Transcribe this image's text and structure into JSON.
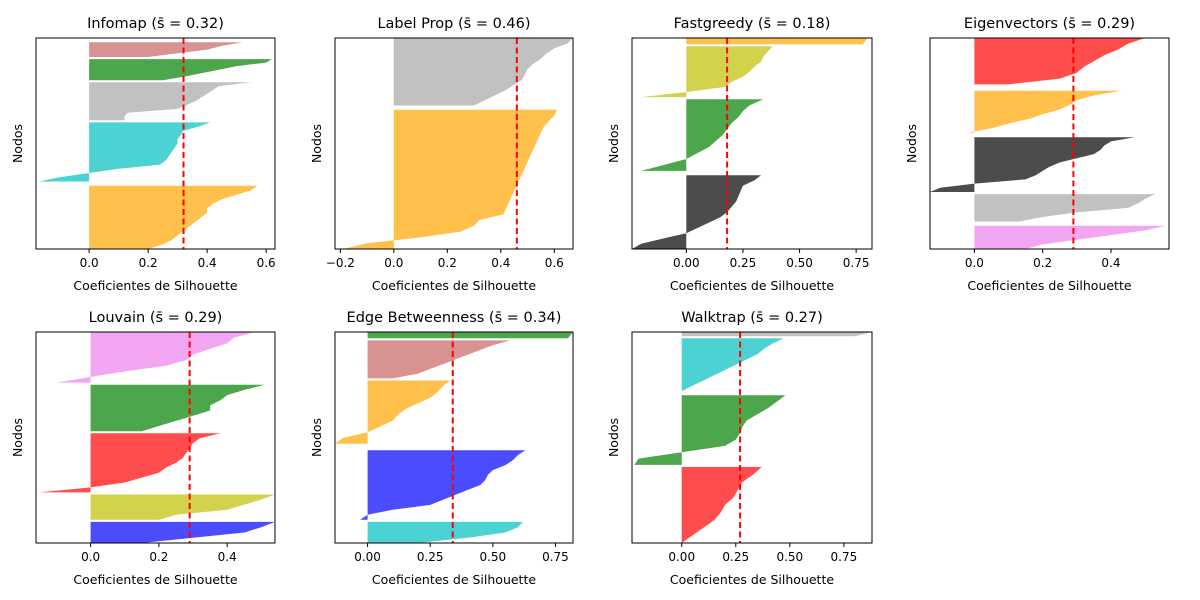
{
  "chart_data": [
    {
      "type": "silhouette",
      "title": "Infomap (s̄ = 0.32)",
      "xlabel": "Coeficientes de Silhouette",
      "ylabel": "Nodos",
      "xlim": [
        -0.18,
        0.63
      ],
      "ylim": [
        0,
        100
      ],
      "xticks": [
        0.0,
        0.2,
        0.4,
        0.6
      ],
      "xtick_labels": [
        "0.0",
        "0.2",
        "0.4",
        "0.6"
      ],
      "mean_silhouette": 0.32,
      "clusters": [
        {
          "color": "#ffa500",
          "y0": 0,
          "y1": 30,
          "values": [
            0.57,
            0.55,
            0.5,
            0.45,
            0.42,
            0.4,
            0.4,
            0.38,
            0.36,
            0.34,
            0.32,
            0.3,
            0.28,
            0.25,
            0.2
          ]
        },
        {
          "color": "#00bfbf",
          "y0": 32,
          "y1": 60,
          "values": [
            0.41,
            0.37,
            0.32,
            0.31,
            0.3,
            0.3,
            0.29,
            0.28,
            0.27,
            0.26,
            0.24,
            0.1,
            0.0,
            -0.1,
            -0.17
          ]
        },
        {
          "color": "#a6a6a6",
          "y0": 61,
          "y1": 79,
          "values": [
            0.55,
            0.44,
            0.42,
            0.4,
            0.38,
            0.36,
            0.33,
            0.3,
            0.13,
            0.12,
            0.12
          ]
        },
        {
          "color": "#008000",
          "y0": 80,
          "y1": 90,
          "values": [
            0.62,
            0.6,
            0.5,
            0.44,
            0.38,
            0.32,
            0.25
          ]
        },
        {
          "color": "#c86464",
          "y0": 91,
          "y1": 98,
          "values": [
            0.52,
            0.45,
            0.4,
            0.3,
            0.2
          ]
        }
      ]
    },
    {
      "type": "silhouette",
      "title": "Label Prop (s̄ = 0.46)",
      "xlabel": "Coeficientes de Silhouette",
      "ylabel": "Nodos",
      "xlim": [
        -0.22,
        0.67
      ],
      "ylim": [
        0,
        100
      ],
      "xticks": [
        -0.2,
        0.0,
        0.2,
        0.4,
        0.6
      ],
      "xtick_labels": [
        "−0.2",
        "0.0",
        "0.2",
        "0.4",
        "0.6"
      ],
      "mean_silhouette": 0.46,
      "clusters": [
        {
          "color": "#ffa500",
          "y0": 0,
          "y1": 66,
          "values": [
            0.61,
            0.6,
            0.58,
            0.56,
            0.55,
            0.54,
            0.53,
            0.52,
            0.51,
            0.5,
            0.49,
            0.48,
            0.47,
            0.46,
            0.45,
            0.44,
            0.43,
            0.42,
            0.41,
            0.32,
            0.3,
            0.25,
            0.1,
            -0.1,
            -0.19
          ]
        },
        {
          "color": "#a6a6a6",
          "y0": 68,
          "y1": 100,
          "values": [
            0.67,
            0.65,
            0.6,
            0.57,
            0.55,
            0.52,
            0.5,
            0.49,
            0.48,
            0.45,
            0.42,
            0.38,
            0.34,
            0.3
          ]
        }
      ]
    },
    {
      "type": "silhouette",
      "title": "Fastgreedy (s̄ = 0.18)",
      "xlabel": "Coeficientes de Silhouette",
      "ylabel": "Nodos",
      "xlim": [
        -0.24,
        0.82
      ],
      "ylim": [
        0,
        100
      ],
      "xticks": [
        0.0,
        0.25,
        0.5,
        0.75
      ],
      "xtick_labels": [
        "0.00",
        "0.25",
        "0.50",
        "0.75"
      ],
      "mean_silhouette": 0.18,
      "clusters": [
        {
          "color": "#000000",
          "y0": 0,
          "y1": 35,
          "values": [
            0.33,
            0.3,
            0.25,
            0.24,
            0.23,
            0.22,
            0.2,
            0.18,
            0.15,
            0.1,
            0.05,
            0.0,
            -0.1,
            -0.2,
            -0.24
          ]
        },
        {
          "color": "#008000",
          "y0": 37,
          "y1": 71,
          "values": [
            0.34,
            0.28,
            0.25,
            0.23,
            0.2,
            0.18,
            0.16,
            0.13,
            0.1,
            0.05,
            0.0,
            -0.1,
            -0.2
          ]
        },
        {
          "color": "#bfbf00",
          "y0": 72,
          "y1": 96,
          "values": [
            0.38,
            0.36,
            0.34,
            0.33,
            0.3,
            0.28,
            0.25,
            0.2,
            0.17,
            0.0,
            -0.2
          ]
        },
        {
          "color": "#ffa500",
          "y0": 97,
          "y1": 100,
          "values": [
            0.8,
            0.78
          ]
        }
      ]
    },
    {
      "type": "silhouette",
      "title": "Eigenvectors (s̄ = 0.29)",
      "xlabel": "Coeficientes de Silhouette",
      "ylabel": "Nodos",
      "xlim": [
        -0.13,
        0.57
      ],
      "ylim": [
        0,
        100
      ],
      "xticks": [
        0.0,
        0.2,
        0.4
      ],
      "xtick_labels": [
        "0.0",
        "0.2",
        "0.4"
      ],
      "mean_silhouette": 0.29,
      "clusters": [
        {
          "color": "#ee82ee",
          "y0": 0,
          "y1": 11,
          "values": [
            0.56,
            0.5,
            0.4,
            0.3,
            0.2,
            0.15
          ]
        },
        {
          "color": "#a6a6a6",
          "y0": 13,
          "y1": 26,
          "values": [
            0.53,
            0.5,
            0.48,
            0.45,
            0.3,
            0.2,
            0.13
          ]
        },
        {
          "color": "#000000",
          "y0": 27,
          "y1": 53,
          "values": [
            0.47,
            0.4,
            0.38,
            0.37,
            0.35,
            0.3,
            0.25,
            0.22,
            0.2,
            0.18,
            0.15,
            0.0,
            -0.1,
            -0.13
          ]
        },
        {
          "color": "#ffa500",
          "y0": 55,
          "y1": 75,
          "values": [
            0.43,
            0.35,
            0.3,
            0.28,
            0.25,
            0.2,
            0.16,
            0.1,
            0.05,
            -0.02
          ]
        },
        {
          "color": "#ff0000",
          "y0": 78,
          "y1": 100,
          "values": [
            0.5,
            0.45,
            0.42,
            0.38,
            0.35,
            0.32,
            0.3,
            0.25,
            0.1
          ]
        }
      ]
    },
    {
      "type": "silhouette",
      "title": "Louvain (s̄ = 0.29)",
      "xlabel": "Coeficientes de Silhouette",
      "ylabel": "Nodos",
      "xlim": [
        -0.16,
        0.54
      ],
      "ylim": [
        0,
        100
      ],
      "xticks": [
        0.0,
        0.2,
        0.4
      ],
      "xtick_labels": [
        "0.0",
        "0.2",
        "0.4"
      ],
      "mean_silhouette": 0.29,
      "clusters": [
        {
          "color": "#0000ff",
          "y0": 0,
          "y1": 10,
          "values": [
            0.54,
            0.5,
            0.45,
            0.3,
            0.15
          ]
        },
        {
          "color": "#bfbf00",
          "y0": 11,
          "y1": 23,
          "values": [
            0.54,
            0.5,
            0.45,
            0.4,
            0.25,
            0.2
          ]
        },
        {
          "color": "#ff0000",
          "y0": 24,
          "y1": 52,
          "values": [
            0.38,
            0.32,
            0.3,
            0.29,
            0.28,
            0.27,
            0.25,
            0.22,
            0.2,
            0.15,
            0.1,
            0.0,
            -0.15
          ]
        },
        {
          "color": "#008000",
          "y0": 53,
          "y1": 75,
          "values": [
            0.51,
            0.45,
            0.4,
            0.38,
            0.35,
            0.35,
            0.3,
            0.25,
            0.2,
            0.15
          ]
        },
        {
          "color": "#ee82ee",
          "y0": 76,
          "y1": 100,
          "values": [
            0.48,
            0.42,
            0.4,
            0.35,
            0.3,
            0.28,
            0.22,
            0.1,
            0.0,
            -0.1
          ]
        }
      ]
    },
    {
      "type": "silhouette",
      "title": "Edge Betweenness (s̄ = 0.34)",
      "xlabel": "Coeficientes de Silhouette",
      "ylabel": "Nodos",
      "xlim": [
        -0.13,
        0.82
      ],
      "ylim": [
        0,
        100
      ],
      "xticks": [
        0.0,
        0.25,
        0.5,
        0.75
      ],
      "xtick_labels": [
        "0.00",
        "0.25",
        "0.50",
        "0.75"
      ],
      "mean_silhouette": 0.34,
      "clusters": [
        {
          "color": "#00bfbf",
          "y0": 0,
          "y1": 10,
          "values": [
            0.62,
            0.6,
            0.55,
            0.4,
            0.2
          ]
        },
        {
          "color": "#0000ff",
          "y0": 11,
          "y1": 44,
          "values": [
            0.63,
            0.6,
            0.58,
            0.55,
            0.5,
            0.48,
            0.47,
            0.45,
            0.4,
            0.35,
            0.3,
            0.25,
            0.1,
            0.0,
            -0.03
          ]
        },
        {
          "color": "#ffa500",
          "y0": 47,
          "y1": 77,
          "values": [
            0.33,
            0.3,
            0.28,
            0.25,
            0.2,
            0.15,
            0.12,
            0.1,
            0.05,
            0.0,
            -0.1,
            -0.13
          ]
        },
        {
          "color": "#c86464",
          "y0": 78,
          "y1": 96,
          "values": [
            0.57,
            0.5,
            0.45,
            0.4,
            0.35,
            0.3,
            0.25,
            0.2,
            0.1
          ]
        },
        {
          "color": "#008000",
          "y0": 97,
          "y1": 100,
          "values": [
            0.82,
            0.8
          ]
        }
      ]
    },
    {
      "type": "silhouette",
      "title": "Walktrap (s̄ = 0.27)",
      "xlabel": "Coeficientes de Silhouette",
      "ylabel": "Nodos",
      "xlim": [
        -0.23,
        0.88
      ],
      "ylim": [
        0,
        100
      ],
      "xticks": [
        0.0,
        0.25,
        0.5,
        0.75
      ],
      "xtick_labels": [
        "0.00",
        "0.25",
        "0.50",
        "0.75"
      ],
      "mean_silhouette": 0.27,
      "clusters": [
        {
          "color": "#ff0000",
          "y0": 0,
          "y1": 36,
          "values": [
            0.37,
            0.33,
            0.28,
            0.26,
            0.24,
            0.2,
            0.18,
            0.15,
            0.1,
            0.05,
            0.0
          ]
        },
        {
          "color": "#008000",
          "y0": 37,
          "y1": 70,
          "values": [
            0.48,
            0.44,
            0.4,
            0.35,
            0.3,
            0.28,
            0.27,
            0.25,
            0.2,
            0.0,
            -0.2,
            -0.22
          ]
        },
        {
          "color": "#00bfbf",
          "y0": 72,
          "y1": 97,
          "values": [
            0.47,
            0.42,
            0.38,
            0.35,
            0.3,
            0.25,
            0.2,
            0.15,
            0.1,
            0.05,
            0.0
          ]
        },
        {
          "color": "#a6a6a6",
          "y0": 98,
          "y1": 100,
          "values": [
            0.88,
            0.8
          ]
        }
      ]
    }
  ]
}
